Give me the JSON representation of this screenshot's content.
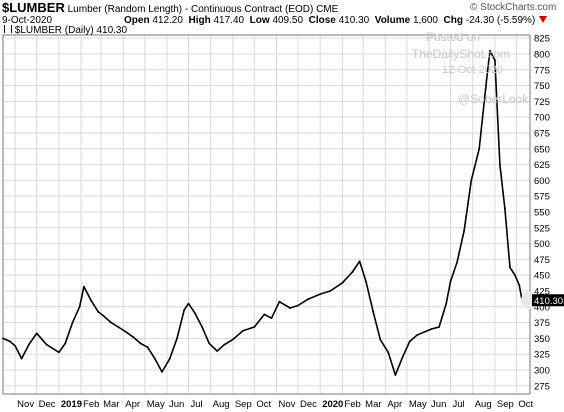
{
  "header": {
    "symbol": "$LUMBER",
    "description": "Lumber (Random Length) - Continuous Contract (EOD)",
    "exchange": "CME",
    "date": "9-Oct-2020",
    "open_label": "Open",
    "open": "412.20",
    "high_label": "High",
    "high": "417.40",
    "low_label": "Low",
    "low": "409.50",
    "close_label": "Close",
    "close": "410.30",
    "volume_label": "Volume",
    "volume": "1,600",
    "chg_label": "Chg",
    "chg": "-24.30 (-5.59%)",
    "down_icon": "down-triangle-icon",
    "series_label": "$LUMBER (Daily) 410.30",
    "source": "© StockCharts.com"
  },
  "watermark": {
    "line1": "Posted on",
    "line2": "TheDailyShot.com",
    "line3": "12-Oct-2020",
    "line4": "@SoberLook"
  },
  "colors": {
    "series": "#000000",
    "grid": "#d9d9d9",
    "last_label_bg": "#000000"
  },
  "chart_data": {
    "type": "line",
    "ylim": [
      262,
      830
    ],
    "y_ticks": [
      275,
      300,
      325,
      350,
      375,
      400,
      425,
      450,
      475,
      500,
      525,
      550,
      575,
      600,
      625,
      650,
      675,
      700,
      725,
      750,
      775,
      800,
      825
    ],
    "x_range": [
      "2018-10-15",
      "2020-10-20"
    ],
    "x_ticks": [
      {
        "label": "Nov",
        "date": "2018-11-01"
      },
      {
        "label": "Dec",
        "date": "2018-12-01"
      },
      {
        "label": "2019",
        "date": "2019-01-01",
        "bold": true
      },
      {
        "label": "Feb",
        "date": "2019-02-01"
      },
      {
        "label": "Mar",
        "date": "2019-03-01"
      },
      {
        "label": "Apr",
        "date": "2019-04-01"
      },
      {
        "label": "May",
        "date": "2019-05-01"
      },
      {
        "label": "Jun",
        "date": "2019-06-01"
      },
      {
        "label": "Jul",
        "date": "2019-07-01"
      },
      {
        "label": "Aug",
        "date": "2019-08-01"
      },
      {
        "label": "Sep",
        "date": "2019-09-01"
      },
      {
        "label": "Oct",
        "date": "2019-10-01"
      },
      {
        "label": "Nov",
        "date": "2019-11-01"
      },
      {
        "label": "Dec",
        "date": "2019-12-01"
      },
      {
        "label": "2020",
        "date": "2020-01-01",
        "bold": true
      },
      {
        "label": "Feb",
        "date": "2020-02-01"
      },
      {
        "label": "Mar",
        "date": "2020-03-01"
      },
      {
        "label": "Apr",
        "date": "2020-04-01"
      },
      {
        "label": "May",
        "date": "2020-05-01"
      },
      {
        "label": "Jun",
        "date": "2020-06-01"
      },
      {
        "label": "Jul",
        "date": "2020-07-01"
      },
      {
        "label": "Aug",
        "date": "2020-08-01"
      },
      {
        "label": "Sep",
        "date": "2020-09-01"
      },
      {
        "label": "Oct",
        "date": "2020-10-01"
      }
    ],
    "series": [
      {
        "values": [
          [
            "2018-10-15",
            350
          ],
          [
            "2018-10-25",
            345
          ],
          [
            "2018-11-01",
            338
          ],
          [
            "2018-11-10",
            318
          ],
          [
            "2018-11-20",
            340
          ],
          [
            "2018-12-01",
            358
          ],
          [
            "2018-12-15",
            340
          ],
          [
            "2019-01-01",
            328
          ],
          [
            "2019-01-10",
            342
          ],
          [
            "2019-01-20",
            375
          ],
          [
            "2019-01-30",
            400
          ],
          [
            "2019-02-05",
            432
          ],
          [
            "2019-02-15",
            410
          ],
          [
            "2019-02-25",
            392
          ],
          [
            "2019-03-05",
            385
          ],
          [
            "2019-03-15",
            375
          ],
          [
            "2019-03-25",
            368
          ],
          [
            "2019-04-05",
            360
          ],
          [
            "2019-04-15",
            352
          ],
          [
            "2019-04-25",
            342
          ],
          [
            "2019-05-05",
            336
          ],
          [
            "2019-05-15",
            318
          ],
          [
            "2019-05-25",
            297
          ],
          [
            "2019-06-05",
            318
          ],
          [
            "2019-06-15",
            350
          ],
          [
            "2019-06-25",
            395
          ],
          [
            "2019-07-01",
            405
          ],
          [
            "2019-07-10",
            390
          ],
          [
            "2019-07-20",
            368
          ],
          [
            "2019-07-30",
            342
          ],
          [
            "2019-08-10",
            330
          ],
          [
            "2019-08-20",
            340
          ],
          [
            "2019-09-01",
            348
          ],
          [
            "2019-09-15",
            362
          ],
          [
            "2019-10-01",
            368
          ],
          [
            "2019-10-15",
            388
          ],
          [
            "2019-10-25",
            382
          ],
          [
            "2019-11-05",
            408
          ],
          [
            "2019-11-20",
            398
          ],
          [
            "2019-12-01",
            402
          ],
          [
            "2019-12-15",
            412
          ],
          [
            "2020-01-01",
            420
          ],
          [
            "2020-01-15",
            425
          ],
          [
            "2020-02-01",
            438
          ],
          [
            "2020-02-15",
            455
          ],
          [
            "2020-02-25",
            472
          ],
          [
            "2020-03-05",
            440
          ],
          [
            "2020-03-15",
            392
          ],
          [
            "2020-03-25",
            348
          ],
          [
            "2020-04-05",
            328
          ],
          [
            "2020-04-15",
            292
          ],
          [
            "2020-04-25",
            320
          ],
          [
            "2020-05-05",
            345
          ],
          [
            "2020-05-15",
            355
          ],
          [
            "2020-05-25",
            360
          ],
          [
            "2020-06-05",
            365
          ],
          [
            "2020-06-15",
            368
          ],
          [
            "2020-06-25",
            405
          ],
          [
            "2020-07-01",
            440
          ],
          [
            "2020-07-10",
            470
          ],
          [
            "2020-07-20",
            520
          ],
          [
            "2020-07-30",
            600
          ],
          [
            "2020-08-10",
            650
          ],
          [
            "2020-08-20",
            755
          ],
          [
            "2020-08-25",
            805
          ],
          [
            "2020-09-01",
            790
          ],
          [
            "2020-09-08",
            625
          ],
          [
            "2020-09-15",
            555
          ],
          [
            "2020-09-22",
            462
          ],
          [
            "2020-09-29",
            450
          ],
          [
            "2020-10-05",
            434
          ],
          [
            "2020-10-09",
            410
          ]
        ]
      }
    ],
    "last_value_label": "410.30",
    "last_value": 410.3,
    "grid": true
  }
}
